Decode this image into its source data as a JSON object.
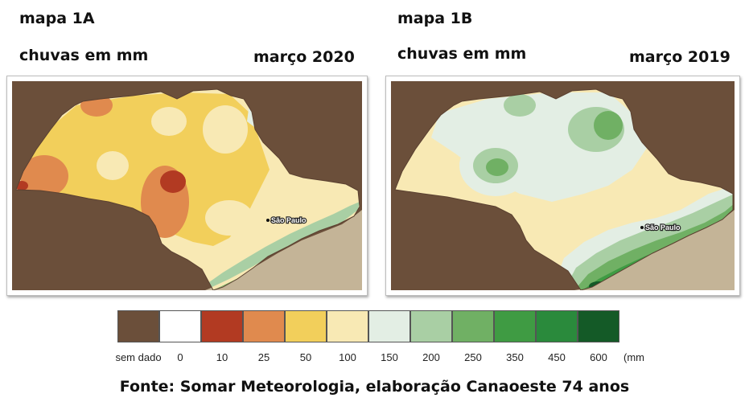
{
  "map_a": {
    "title": "mapa 1A",
    "subtitle": "chuvas em mm",
    "date": "março 2020",
    "city_label": "São Paulo"
  },
  "map_b": {
    "title": "mapa 1B",
    "subtitle": "chuvas em mm",
    "date": "março 2019",
    "city_label": "São Paulo"
  },
  "legend": {
    "unit": "(mm",
    "classes": [
      {
        "label": "sem dado",
        "color": "#6b4f3a"
      },
      {
        "label": "0",
        "color": "#ffffff"
      },
      {
        "label": "10",
        "color": "#b23a22"
      },
      {
        "label": "25",
        "color": "#e08a4e"
      },
      {
        "label": "50",
        "color": "#f2cf5b"
      },
      {
        "label": "100",
        "color": "#f8e9b4"
      },
      {
        "label": "150",
        "color": "#e3eee4"
      },
      {
        "label": "200",
        "color": "#a9cfa4"
      },
      {
        "label": "250",
        "color": "#70b064"
      },
      {
        "label": "350",
        "color": "#3f9b43"
      },
      {
        "label": "450",
        "color": "#2a8a3c"
      },
      {
        "label": "600",
        "color": "#145a27"
      }
    ]
  },
  "source": "Fonte: Somar Meteorologia, elaboração Canaoeste 74 anos"
}
